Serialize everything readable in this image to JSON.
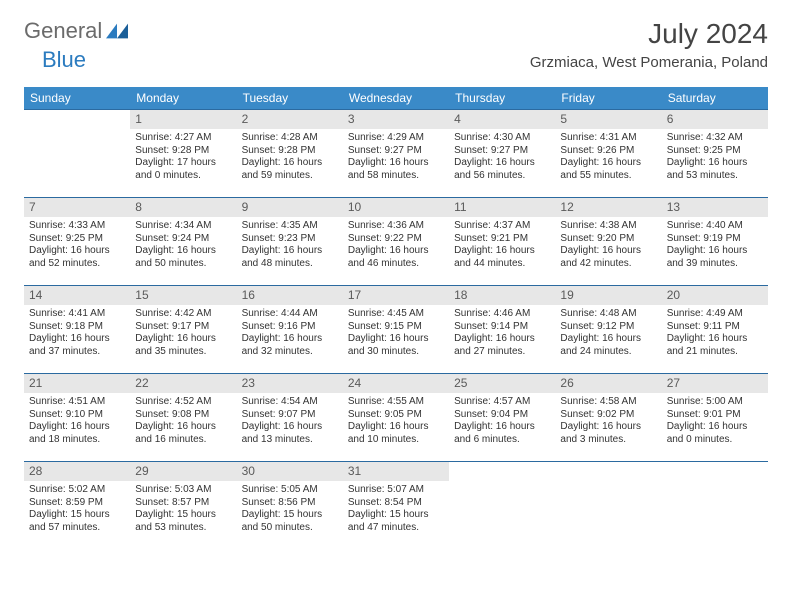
{
  "brand": {
    "general": "General",
    "blue": "Blue"
  },
  "title": "July 2024",
  "location": "Grzmiaca, West Pomerania, Poland",
  "colors": {
    "header_bg": "#3a8ac8",
    "header_text": "#ffffff",
    "row_border": "#2b6aa0",
    "daynum_bg": "#e7e7e7",
    "daynum_text": "#5a5a5a",
    "body_text": "#333333",
    "logo_gray": "#6b6b6b",
    "logo_blue": "#2b7bbf"
  },
  "typography": {
    "title_fontsize": 28,
    "location_fontsize": 15,
    "cell_fontsize": 10,
    "header_fontsize": 12
  },
  "weekdays": [
    "Sunday",
    "Monday",
    "Tuesday",
    "Wednesday",
    "Thursday",
    "Friday",
    "Saturday"
  ],
  "weeks": [
    [
      {
        "day": "",
        "sr": "",
        "ss": "",
        "dl1": "",
        "dl2": ""
      },
      {
        "day": "1",
        "sr": "Sunrise: 4:27 AM",
        "ss": "Sunset: 9:28 PM",
        "dl1": "Daylight: 17 hours",
        "dl2": "and 0 minutes."
      },
      {
        "day": "2",
        "sr": "Sunrise: 4:28 AM",
        "ss": "Sunset: 9:28 PM",
        "dl1": "Daylight: 16 hours",
        "dl2": "and 59 minutes."
      },
      {
        "day": "3",
        "sr": "Sunrise: 4:29 AM",
        "ss": "Sunset: 9:27 PM",
        "dl1": "Daylight: 16 hours",
        "dl2": "and 58 minutes."
      },
      {
        "day": "4",
        "sr": "Sunrise: 4:30 AM",
        "ss": "Sunset: 9:27 PM",
        "dl1": "Daylight: 16 hours",
        "dl2": "and 56 minutes."
      },
      {
        "day": "5",
        "sr": "Sunrise: 4:31 AM",
        "ss": "Sunset: 9:26 PM",
        "dl1": "Daylight: 16 hours",
        "dl2": "and 55 minutes."
      },
      {
        "day": "6",
        "sr": "Sunrise: 4:32 AM",
        "ss": "Sunset: 9:25 PM",
        "dl1": "Daylight: 16 hours",
        "dl2": "and 53 minutes."
      }
    ],
    [
      {
        "day": "7",
        "sr": "Sunrise: 4:33 AM",
        "ss": "Sunset: 9:25 PM",
        "dl1": "Daylight: 16 hours",
        "dl2": "and 52 minutes."
      },
      {
        "day": "8",
        "sr": "Sunrise: 4:34 AM",
        "ss": "Sunset: 9:24 PM",
        "dl1": "Daylight: 16 hours",
        "dl2": "and 50 minutes."
      },
      {
        "day": "9",
        "sr": "Sunrise: 4:35 AM",
        "ss": "Sunset: 9:23 PM",
        "dl1": "Daylight: 16 hours",
        "dl2": "and 48 minutes."
      },
      {
        "day": "10",
        "sr": "Sunrise: 4:36 AM",
        "ss": "Sunset: 9:22 PM",
        "dl1": "Daylight: 16 hours",
        "dl2": "and 46 minutes."
      },
      {
        "day": "11",
        "sr": "Sunrise: 4:37 AM",
        "ss": "Sunset: 9:21 PM",
        "dl1": "Daylight: 16 hours",
        "dl2": "and 44 minutes."
      },
      {
        "day": "12",
        "sr": "Sunrise: 4:38 AM",
        "ss": "Sunset: 9:20 PM",
        "dl1": "Daylight: 16 hours",
        "dl2": "and 42 minutes."
      },
      {
        "day": "13",
        "sr": "Sunrise: 4:40 AM",
        "ss": "Sunset: 9:19 PM",
        "dl1": "Daylight: 16 hours",
        "dl2": "and 39 minutes."
      }
    ],
    [
      {
        "day": "14",
        "sr": "Sunrise: 4:41 AM",
        "ss": "Sunset: 9:18 PM",
        "dl1": "Daylight: 16 hours",
        "dl2": "and 37 minutes."
      },
      {
        "day": "15",
        "sr": "Sunrise: 4:42 AM",
        "ss": "Sunset: 9:17 PM",
        "dl1": "Daylight: 16 hours",
        "dl2": "and 35 minutes."
      },
      {
        "day": "16",
        "sr": "Sunrise: 4:44 AM",
        "ss": "Sunset: 9:16 PM",
        "dl1": "Daylight: 16 hours",
        "dl2": "and 32 minutes."
      },
      {
        "day": "17",
        "sr": "Sunrise: 4:45 AM",
        "ss": "Sunset: 9:15 PM",
        "dl1": "Daylight: 16 hours",
        "dl2": "and 30 minutes."
      },
      {
        "day": "18",
        "sr": "Sunrise: 4:46 AM",
        "ss": "Sunset: 9:14 PM",
        "dl1": "Daylight: 16 hours",
        "dl2": "and 27 minutes."
      },
      {
        "day": "19",
        "sr": "Sunrise: 4:48 AM",
        "ss": "Sunset: 9:12 PM",
        "dl1": "Daylight: 16 hours",
        "dl2": "and 24 minutes."
      },
      {
        "day": "20",
        "sr": "Sunrise: 4:49 AM",
        "ss": "Sunset: 9:11 PM",
        "dl1": "Daylight: 16 hours",
        "dl2": "and 21 minutes."
      }
    ],
    [
      {
        "day": "21",
        "sr": "Sunrise: 4:51 AM",
        "ss": "Sunset: 9:10 PM",
        "dl1": "Daylight: 16 hours",
        "dl2": "and 18 minutes."
      },
      {
        "day": "22",
        "sr": "Sunrise: 4:52 AM",
        "ss": "Sunset: 9:08 PM",
        "dl1": "Daylight: 16 hours",
        "dl2": "and 16 minutes."
      },
      {
        "day": "23",
        "sr": "Sunrise: 4:54 AM",
        "ss": "Sunset: 9:07 PM",
        "dl1": "Daylight: 16 hours",
        "dl2": "and 13 minutes."
      },
      {
        "day": "24",
        "sr": "Sunrise: 4:55 AM",
        "ss": "Sunset: 9:05 PM",
        "dl1": "Daylight: 16 hours",
        "dl2": "and 10 minutes."
      },
      {
        "day": "25",
        "sr": "Sunrise: 4:57 AM",
        "ss": "Sunset: 9:04 PM",
        "dl1": "Daylight: 16 hours",
        "dl2": "and 6 minutes."
      },
      {
        "day": "26",
        "sr": "Sunrise: 4:58 AM",
        "ss": "Sunset: 9:02 PM",
        "dl1": "Daylight: 16 hours",
        "dl2": "and 3 minutes."
      },
      {
        "day": "27",
        "sr": "Sunrise: 5:00 AM",
        "ss": "Sunset: 9:01 PM",
        "dl1": "Daylight: 16 hours",
        "dl2": "and 0 minutes."
      }
    ],
    [
      {
        "day": "28",
        "sr": "Sunrise: 5:02 AM",
        "ss": "Sunset: 8:59 PM",
        "dl1": "Daylight: 15 hours",
        "dl2": "and 57 minutes."
      },
      {
        "day": "29",
        "sr": "Sunrise: 5:03 AM",
        "ss": "Sunset: 8:57 PM",
        "dl1": "Daylight: 15 hours",
        "dl2": "and 53 minutes."
      },
      {
        "day": "30",
        "sr": "Sunrise: 5:05 AM",
        "ss": "Sunset: 8:56 PM",
        "dl1": "Daylight: 15 hours",
        "dl2": "and 50 minutes."
      },
      {
        "day": "31",
        "sr": "Sunrise: 5:07 AM",
        "ss": "Sunset: 8:54 PM",
        "dl1": "Daylight: 15 hours",
        "dl2": "and 47 minutes."
      },
      {
        "day": "",
        "sr": "",
        "ss": "",
        "dl1": "",
        "dl2": ""
      },
      {
        "day": "",
        "sr": "",
        "ss": "",
        "dl1": "",
        "dl2": ""
      },
      {
        "day": "",
        "sr": "",
        "ss": "",
        "dl1": "",
        "dl2": ""
      }
    ]
  ]
}
